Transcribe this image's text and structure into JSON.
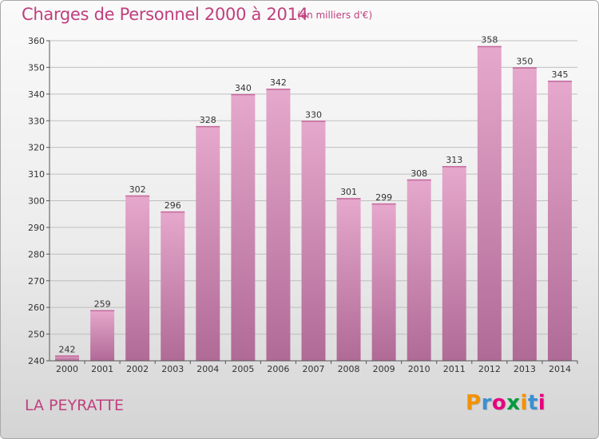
{
  "header": {
    "title": "Charges de Personnel 2000 à 2014",
    "subtitle": "(en milliers d'€)"
  },
  "footer": {
    "commune": "LA PEYRATTE",
    "logo": {
      "text": "Proxiti",
      "colors": [
        "#f39200",
        "#3a8fd0",
        "#e6007e",
        "#009a3e",
        "#f39200",
        "#3a8fd0",
        "#e6007e"
      ]
    }
  },
  "colors": {
    "bar_top": "#e6a8cc",
    "bar_bottom": "#b06a96",
    "text_accent": "#c0407e"
  },
  "chart_data": {
    "type": "bar",
    "title": "Charges de Personnel 2000 à 2014",
    "subtitle": "(en milliers d'€)",
    "categories": [
      "2000",
      "2001",
      "2002",
      "2003",
      "2004",
      "2005",
      "2006",
      "2007",
      "2008",
      "2009",
      "2010",
      "2011",
      "2012",
      "2013",
      "2014"
    ],
    "values": [
      242,
      259,
      302,
      296,
      328,
      340,
      342,
      330,
      301,
      299,
      308,
      313,
      358,
      350,
      345
    ],
    "ylim": [
      240,
      360
    ],
    "yticks": [
      240,
      250,
      260,
      270,
      280,
      290,
      300,
      310,
      320,
      330,
      340,
      350,
      360
    ],
    "grid": true,
    "legend": "none"
  }
}
